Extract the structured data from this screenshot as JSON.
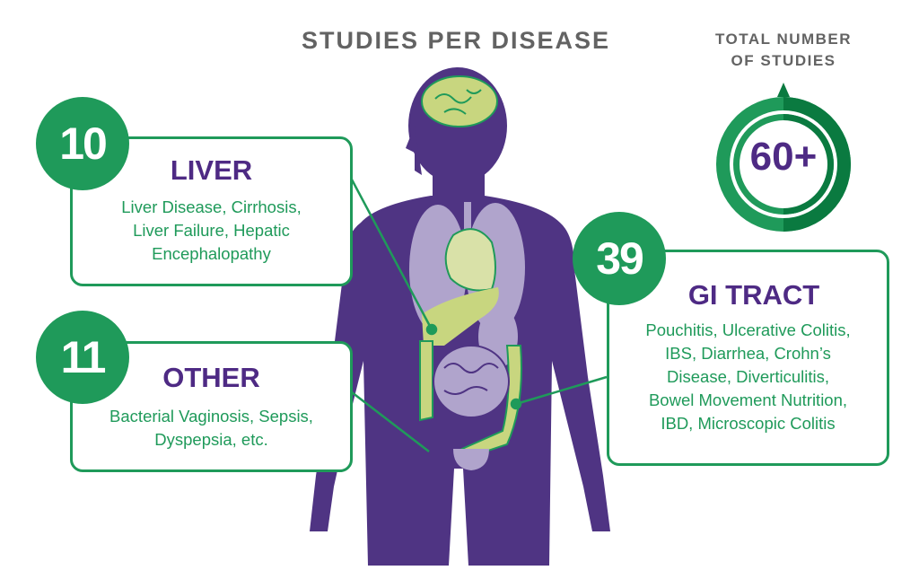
{
  "title": "STUDIES PER DISEASE",
  "total": {
    "label_line1": "TOTAL NUMBER",
    "label_line2": "OF STUDIES",
    "value": "60+"
  },
  "categories": [
    {
      "count": "10",
      "name": "LIVER",
      "lines": [
        "Liver Disease, Cirrhosis,",
        "Liver Failure, Hepatic",
        "Encephalopathy"
      ]
    },
    {
      "count": "11",
      "name": "OTHER",
      "lines": [
        "Bacterial Vaginosis, Sepsis,",
        "Dyspepsia, etc."
      ]
    },
    {
      "count": "39",
      "name": "GI TRACT",
      "lines": [
        "Pouchitis, Ulcerative Colitis,",
        "IBS, Diarrhea, Crohn’s",
        "Disease, Diverticulitis,",
        "Bowel Movement Nutrition,",
        "IBD, Microscopic Colitis"
      ]
    }
  ],
  "colors": {
    "green": "#1f9a5a",
    "dark_green": "#0a7a40",
    "purple": "#4e2a84",
    "body": "#4f3483",
    "organ_green": "#c8d67f",
    "organ_lavender": "#b0a4cc"
  }
}
